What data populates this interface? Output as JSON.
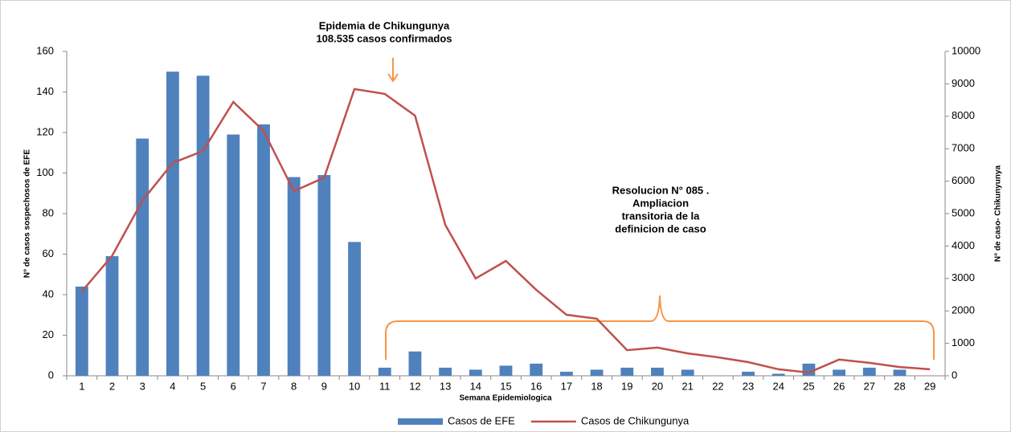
{
  "chart_data": {
    "type": "bar-line",
    "x_label": "Semana Epidemiologica",
    "y_label": "N° de casos sospechosos de EFE",
    "y2_label": "N° de caso- Chikunyunya",
    "categories": [
      "1",
      "2",
      "3",
      "4",
      "5",
      "6",
      "7",
      "8",
      "9",
      "10",
      "11",
      "12",
      "13",
      "14",
      "15",
      "16",
      "17",
      "18",
      "19",
      "20",
      "21",
      "22",
      "23",
      "24",
      "25",
      "26",
      "27",
      "28",
      "29"
    ],
    "series": [
      {
        "name": "Casos de EFE",
        "type": "bar",
        "color": "#4f81bd",
        "values": [
          44,
          59,
          117,
          150,
          148,
          119,
          124,
          98,
          99,
          66,
          4,
          12,
          4,
          3,
          5,
          6,
          2,
          3,
          4,
          4,
          3,
          0,
          2,
          1,
          6,
          3,
          4,
          3,
          0
        ]
      },
      {
        "name": "Casos de Chikungunya",
        "type": "line",
        "axis": "y2",
        "color": "#c0504d",
        "values": [
          2600,
          3700,
          5400,
          6560,
          6930,
          8440,
          7550,
          5690,
          6110,
          8840,
          8690,
          8020,
          4650,
          3000,
          3540,
          2650,
          1880,
          1760,
          790,
          870,
          690,
          570,
          420,
          200,
          100,
          500,
          400,
          270,
          200
        ]
      }
    ],
    "ylim": [
      0,
      160
    ],
    "yticks": [
      0,
      20,
      40,
      60,
      80,
      100,
      120,
      140,
      160
    ],
    "y2lim": [
      0,
      10000
    ],
    "y2ticks": [
      0,
      1000,
      2000,
      3000,
      4000,
      5000,
      6000,
      7000,
      8000,
      9000,
      10000
    ],
    "annotations": [
      {
        "lines": [
          "Epidemia de Chikungunya",
          "108.535 casos confirmados"
        ]
      },
      {
        "lines": [
          "Resolucion N° 085 .",
          "Ampliacion",
          "transitoria de la",
          "definicion de caso"
        ]
      }
    ],
    "legend": "bottom"
  }
}
